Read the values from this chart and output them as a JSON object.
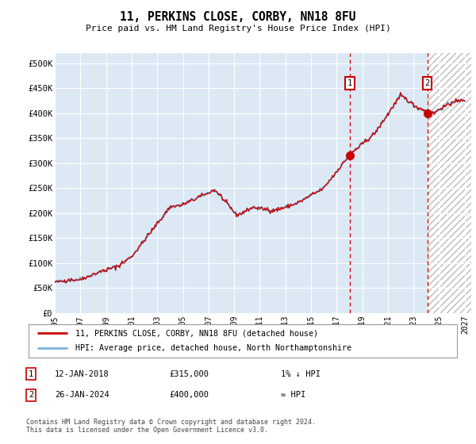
{
  "title": "11, PERKINS CLOSE, CORBY, NN18 8FU",
  "subtitle": "Price paid vs. HM Land Registry's House Price Index (HPI)",
  "legend_line1": "11, PERKINS CLOSE, CORBY, NN18 8FU (detached house)",
  "legend_line2": "HPI: Average price, detached house, North Northamptonshire",
  "annotation1_date": "12-JAN-2018",
  "annotation1_price": "£315,000",
  "annotation1_note": "1% ↓ HPI",
  "annotation2_date": "26-JAN-2024",
  "annotation2_price": "£400,000",
  "annotation2_note": "≈ HPI",
  "footer": "Contains HM Land Registry data © Crown copyright and database right 2024.\nThis data is licensed under the Open Government Licence v3.0.",
  "hpi_color": "#7ab4d8",
  "price_color": "#cc0000",
  "dot_color": "#cc0000",
  "vline_color": "#cc0000",
  "bg_color": "#dce9f5",
  "ylim": [
    0,
    520000
  ],
  "yticks": [
    0,
    50000,
    100000,
    150000,
    200000,
    250000,
    300000,
    350000,
    400000,
    450000,
    500000
  ],
  "sale1_x": 2018.04,
  "sale1_y": 315000,
  "sale2_x": 2024.07,
  "sale2_y": 400000,
  "vline1_x": 2018.04,
  "vline2_x": 2024.07,
  "xmin": 1995.0,
  "xmax": 2027.5,
  "future_start": 2024.07,
  "xtick_years": [
    1995,
    1997,
    1999,
    2001,
    2003,
    2005,
    2007,
    2009,
    2011,
    2013,
    2015,
    2017,
    2019,
    2021,
    2023,
    2025,
    2027
  ]
}
